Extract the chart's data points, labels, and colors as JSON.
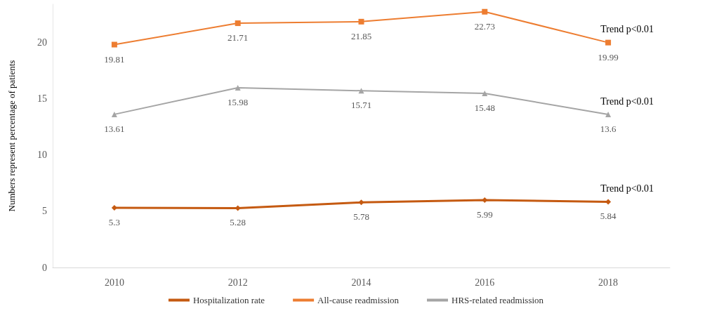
{
  "chart_data": {
    "type": "line",
    "ylabel": "Numbers represent percentage of patients",
    "categories": [
      "2010",
      "2012",
      "2014",
      "2016",
      "2018"
    ],
    "series": [
      {
        "name": "Hospitalization rate",
        "color": "#c55a11",
        "marker": "diamond",
        "values": [
          5.3,
          5.28,
          5.78,
          5.99,
          5.84
        ]
      },
      {
        "name": "All-cause readmission",
        "color": "#ed7d31",
        "marker": "square",
        "values": [
          19.81,
          21.71,
          21.85,
          22.73,
          19.99
        ]
      },
      {
        "name": "HRS-related readmission",
        "color": "#a5a5a5",
        "marker": "triangle",
        "values": [
          13.61,
          15.98,
          15.71,
          15.48,
          13.6
        ]
      }
    ],
    "ylim": [
      0,
      23.4
    ],
    "yticks": [
      0,
      5,
      10,
      15,
      20
    ],
    "grid": false,
    "legend": "bottom",
    "data_labels": true,
    "annotations": [
      {
        "text": "Trend p<0.01",
        "x": "2018",
        "y": 19.99
      },
      {
        "text": "Trend p<0.01",
        "x": "2018",
        "y": 13.6
      },
      {
        "text": "Trend p<0.01",
        "x": "2018",
        "y": 5.84
      }
    ]
  }
}
